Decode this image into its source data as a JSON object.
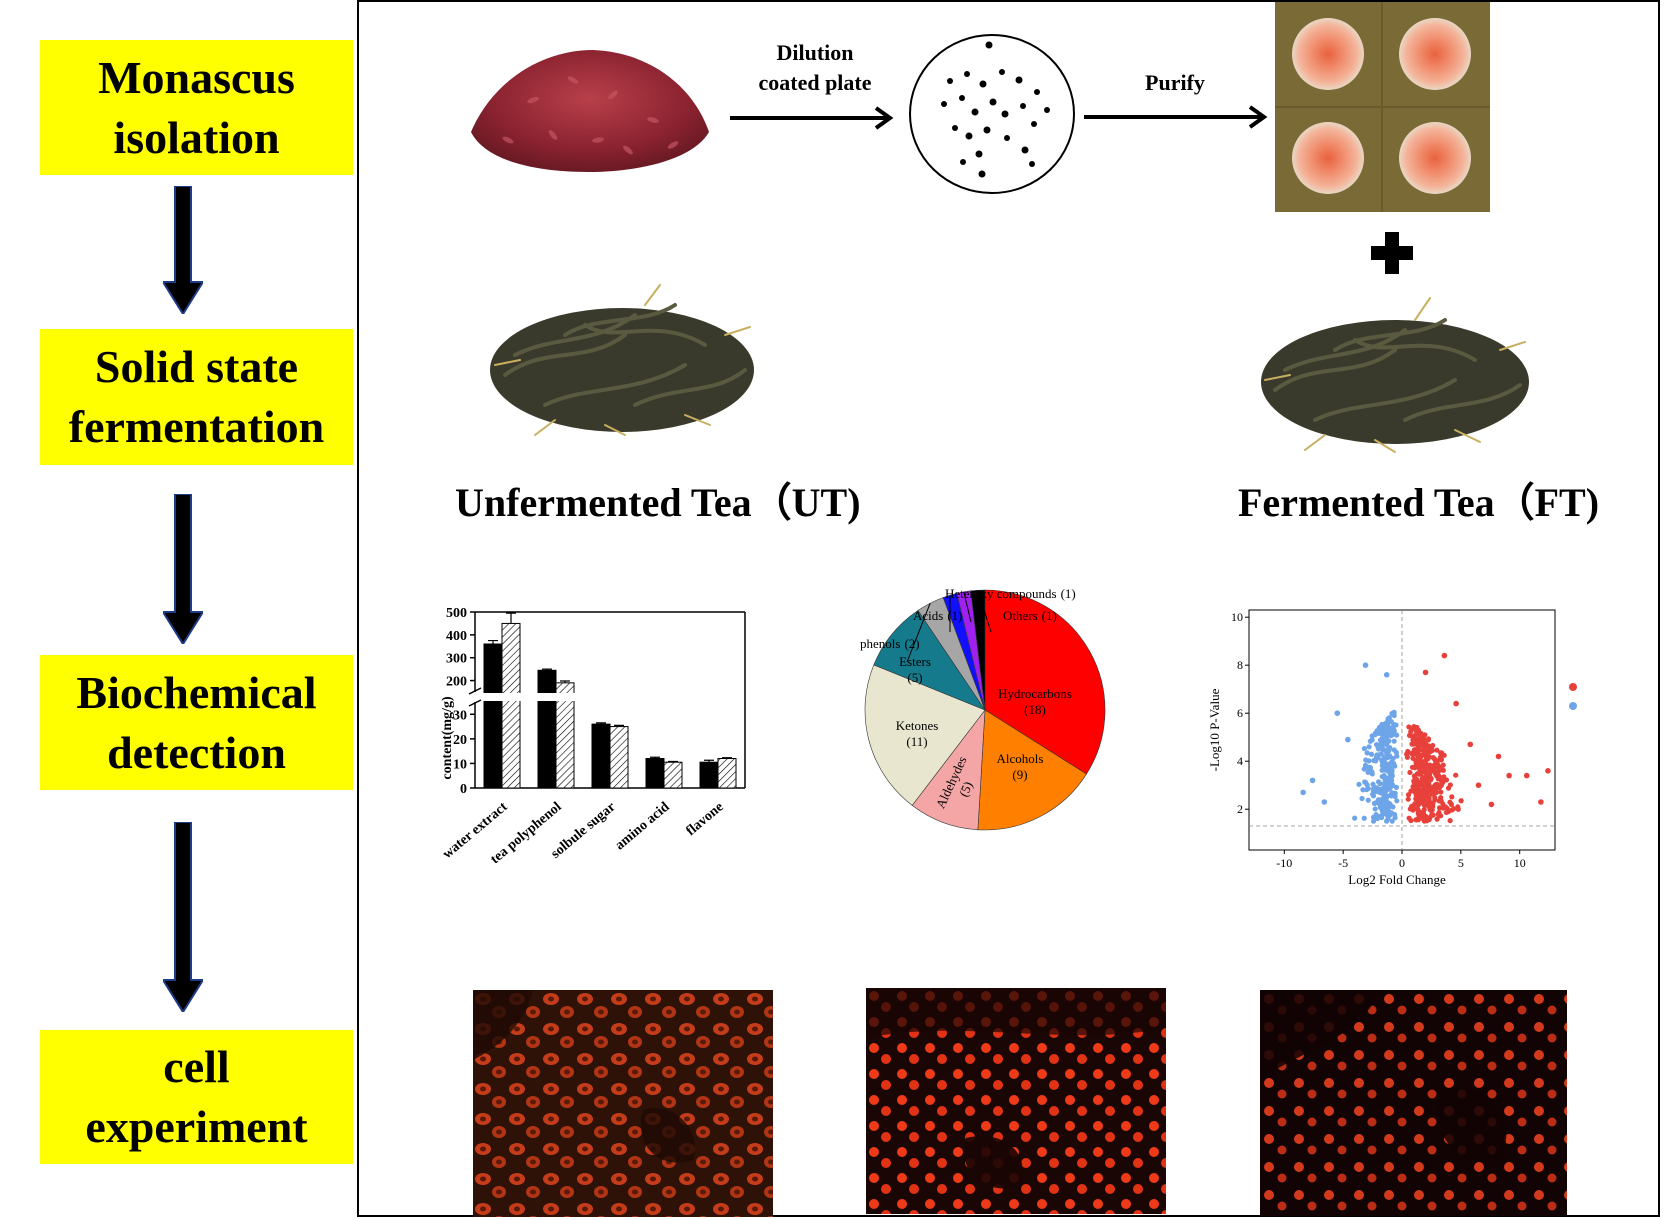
{
  "stages": [
    {
      "label": "Monascus\nisolation"
    },
    {
      "label": "Solid state\nfermentation"
    },
    {
      "label": "Biochemical\ndetection"
    },
    {
      "label": "cell\nexperiment"
    }
  ],
  "isolation": {
    "step1_label": "Dilution\ncoated plate",
    "step2_label": "Purify"
  },
  "tea": {
    "unfermented_label": "Unfermented Tea（UT)",
    "fermented_label": "Fermented Tea（FT)"
  },
  "colors": {
    "stage_box": "#ffff00",
    "arrow_fill": "#000000",
    "arrow_outline": "#1f3c88",
    "hydrocarbons": "#ff0000",
    "alcohols": "#ff8000",
    "aldehydes": "#f4a6a6",
    "ketones": "#e9e6cf",
    "esters": "#157a8c",
    "phenols": "#a6a6a6",
    "acids": "#1010ff",
    "heteroxy": "#a020f0",
    "others": "#000000",
    "volcano_up": "#e8403a",
    "volcano_down": "#6ea4e8"
  },
  "chart_data": [
    {
      "type": "bar",
      "categories": [
        "water extract",
        "tea polyphenol",
        "solbule sugar",
        "amino acid",
        "flavone"
      ],
      "series": [
        {
          "values": [
            360,
            245,
            26,
            12,
            10.5
          ],
          "errors": [
            15,
            5,
            0.5,
            0.5,
            0.8
          ]
        },
        {
          "values": [
            450,
            190,
            25,
            10.5,
            12
          ],
          "errors": [
            45,
            8,
            0.5,
            0.3,
            0.3
          ]
        }
      ],
      "ylabel": "content(mg/g)",
      "yaxis_lower": {
        "range": [
          0,
          35
        ],
        "ticks": [
          "0",
          "10",
          "20",
          "30"
        ]
      },
      "yaxis_upper": {
        "range": [
          150,
          500
        ],
        "ticks": [
          "200",
          "300",
          "400",
          "500"
        ]
      },
      "broken_axis": true
    },
    {
      "type": "pie",
      "slices": [
        {
          "label": "Hydrocarbons",
          "count_label": "(18)",
          "value": 18
        },
        {
          "label": "Alcohols",
          "count_label": "(9)",
          "value": 9
        },
        {
          "label": "Aldehydes",
          "count_label": "(5)",
          "value": 5
        },
        {
          "label": "Ketones",
          "count_label": "(11)",
          "value": 11
        },
        {
          "label": "Esters",
          "count_label": "(5)",
          "value": 5
        },
        {
          "label": "phenols",
          "count_label": "(2)",
          "value": 2
        },
        {
          "label": "Acids",
          "count_label": "(1)",
          "value": 1
        },
        {
          "label": "Heteroxy compounds",
          "count_label": "(1)",
          "value": 1
        },
        {
          "label": "Others",
          "count_label": "(1)",
          "value": 1
        }
      ]
    },
    {
      "type": "scatter",
      "xlabel": "Log2 Fold Change",
      "ylabel": "-Log10 P-Value",
      "xlim": [
        -13,
        13
      ],
      "ylim": [
        0.3,
        10.3
      ],
      "xticks": [
        "-10",
        "-5",
        "0",
        "5",
        "10"
      ],
      "yticks": [
        "2",
        "4",
        "6",
        "8",
        "10"
      ],
      "threshold_y": 1.3,
      "threshold_x": 0,
      "series": [
        {
          "group": "up",
          "sample_points": [
            [
              3.6,
              8.4
            ],
            [
              2.0,
              7.7
            ],
            [
              4.6,
              6.4
            ],
            [
              5.8,
              4.7
            ],
            [
              8.2,
              4.2
            ],
            [
              9.1,
              3.4
            ],
            [
              10.6,
              3.4
            ],
            [
              11.8,
              2.3
            ],
            [
              12.4,
              3.6
            ],
            [
              6.5,
              3.0
            ],
            [
              7.6,
              2.2
            ]
          ]
        },
        {
          "group": "down",
          "sample_points": [
            [
              -3.1,
              8.0
            ],
            [
              -1.3,
              7.6
            ],
            [
              -5.5,
              6.0
            ],
            [
              -7.6,
              3.2
            ],
            [
              -8.4,
              2.7
            ],
            [
              -6.6,
              2.3
            ],
            [
              -4.6,
              4.9
            ]
          ]
        }
      ]
    }
  ]
}
